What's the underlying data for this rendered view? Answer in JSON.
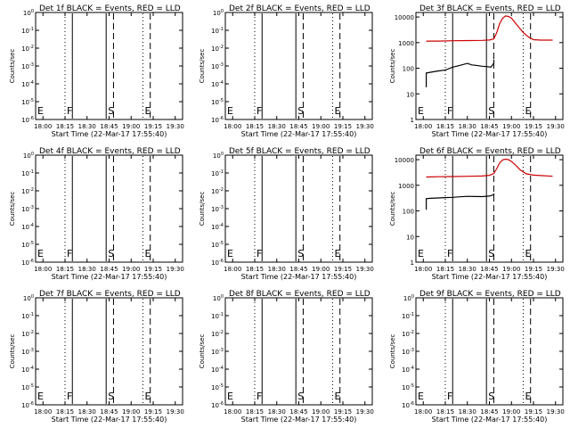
{
  "figure": {
    "title": "Det 1f BLACK = Events, RED = LLD"
  },
  "chart_data": [
    {
      "type": "line",
      "detector": "1f",
      "title": "Det 1f BLACK = Events, RED = LLD",
      "xlabel": "Start Time (22-Mar-17 17:55:40)",
      "ylabel": "Counts/sec",
      "yscale": "log",
      "xlim": [
        "17:55",
        "19:35"
      ],
      "xticks": [
        "18:00",
        "18:15",
        "18:30",
        "18:45",
        "19:00",
        "19:15",
        "19:30"
      ],
      "yticks": [
        "10^0",
        "10^-1",
        "10^-2",
        "10^-3",
        "10^-4",
        "10^-5",
        "10^-6"
      ],
      "ylim": [
        -6,
        0
      ],
      "markers": [
        {
          "label": "E",
          "time": "17:55",
          "style": "dotted"
        },
        {
          "label": "F",
          "time": "18:15",
          "style": "dotted"
        },
        {
          "label": "",
          "time": "18:20",
          "style": "solid"
        },
        {
          "label": "S",
          "time": "18:43",
          "style": "solid"
        },
        {
          "label": "",
          "time": "18:48",
          "style": "dashed"
        },
        {
          "label": "E",
          "time": "19:08",
          "style": "dotted"
        },
        {
          "label": "",
          "time": "19:13",
          "style": "dashed"
        }
      ],
      "series": []
    },
    {
      "type": "line",
      "detector": "2f",
      "title": "Det 2f BLACK = Events, RED = LLD",
      "xlabel": "Start Time (22-Mar-17 17:55:40)",
      "ylabel": "Counts/sec",
      "yscale": "log",
      "xlim": [
        "17:55",
        "19:35"
      ],
      "xticks": [
        "18:00",
        "18:15",
        "18:30",
        "18:45",
        "19:00",
        "19:15",
        "19:30"
      ],
      "yticks": [
        "10^0",
        "10^-1",
        "10^-2",
        "10^-3",
        "10^-4",
        "10^-5",
        "10^-6"
      ],
      "ylim": [
        -6,
        0
      ],
      "markers": [
        {
          "label": "E",
          "time": "17:55",
          "style": "dotted"
        },
        {
          "label": "F",
          "time": "18:15",
          "style": "dotted"
        },
        {
          "label": "",
          "time": "18:20",
          "style": "solid"
        },
        {
          "label": "S",
          "time": "18:43",
          "style": "solid"
        },
        {
          "label": "",
          "time": "18:48",
          "style": "dashed"
        },
        {
          "label": "E",
          "time": "19:08",
          "style": "dotted"
        },
        {
          "label": "",
          "time": "19:13",
          "style": "dashed"
        }
      ],
      "series": []
    },
    {
      "type": "line",
      "detector": "3f",
      "title": "Det 3f BLACK = Events, RED = LLD",
      "xlabel": "Start Time (22-Mar-17 17:55:40)",
      "ylabel": "Counts/sec",
      "yscale": "log",
      "xlim": [
        "17:55",
        "19:35"
      ],
      "xticks": [
        "18:00",
        "18:15",
        "18:30",
        "18:45",
        "19:00",
        "19:15",
        "19:30"
      ],
      "yticks": [
        "1",
        "10",
        "100",
        "1000",
        "10000"
      ],
      "ylim": [
        1,
        15000
      ],
      "markers": [
        {
          "label": "E",
          "time": "17:55",
          "style": "dotted"
        },
        {
          "label": "F",
          "time": "18:15",
          "style": "dotted"
        },
        {
          "label": "",
          "time": "18:20",
          "style": "solid"
        },
        {
          "label": "S",
          "time": "18:43",
          "style": "solid"
        },
        {
          "label": "",
          "time": "18:48",
          "style": "dashed"
        },
        {
          "label": "E",
          "time": "19:08",
          "style": "dotted"
        },
        {
          "label": "",
          "time": "19:13",
          "style": "dashed"
        }
      ],
      "series": [
        {
          "color": "#000000",
          "x": [
            "18:02",
            "18:02",
            "18:05",
            "18:10",
            "18:15",
            "18:20",
            "18:25",
            "18:30",
            "18:33",
            "18:36",
            "18:40",
            "18:44",
            "18:46",
            "18:47",
            "18:48",
            "18:48"
          ],
          "y": [
            18,
            65,
            70,
            78,
            85,
            110,
            130,
            155,
            135,
            130,
            120,
            115,
            110,
            130,
            160,
            220
          ]
        },
        {
          "color": "#cc0000",
          "x": [
            "18:02",
            "18:10",
            "18:20",
            "18:30",
            "18:40",
            "18:45",
            "18:48",
            "18:50",
            "18:52",
            "18:54",
            "18:56",
            "18:58",
            "19:00",
            "19:02",
            "19:05",
            "19:08",
            "19:12",
            "19:15",
            "19:20",
            "19:28"
          ],
          "y": [
            1150,
            1150,
            1180,
            1200,
            1220,
            1260,
            1400,
            2500,
            5500,
            9000,
            11000,
            10500,
            9000,
            6500,
            4000,
            2500,
            1600,
            1300,
            1250,
            1250
          ]
        }
      ]
    },
    {
      "type": "line",
      "detector": "4f",
      "title": "Det 4f BLACK = Events, RED = LLD",
      "xlabel": "Start Time (22-Mar-17 17:55:40)",
      "ylabel": "Counts/sec",
      "yscale": "log",
      "xlim": [
        "17:55",
        "19:35"
      ],
      "xticks": [
        "18:00",
        "18:15",
        "18:30",
        "18:45",
        "19:00",
        "19:15",
        "19:30"
      ],
      "yticks": [
        "10^0",
        "10^-1",
        "10^-2",
        "10^-3",
        "10^-4",
        "10^-5",
        "10^-6"
      ],
      "ylim": [
        -6,
        0
      ],
      "markers": [
        {
          "label": "E",
          "time": "17:55",
          "style": "dotted"
        },
        {
          "label": "F",
          "time": "18:15",
          "style": "dotted"
        },
        {
          "label": "",
          "time": "18:20",
          "style": "solid"
        },
        {
          "label": "S",
          "time": "18:43",
          "style": "solid"
        },
        {
          "label": "",
          "time": "18:48",
          "style": "dashed"
        },
        {
          "label": "E",
          "time": "19:08",
          "style": "dotted"
        },
        {
          "label": "",
          "time": "19:13",
          "style": "dashed"
        }
      ],
      "series": []
    },
    {
      "type": "line",
      "detector": "5f",
      "title": "Det 5f BLACK = Events, RED = LLD",
      "xlabel": "Start Time (22-Mar-17 17:55:40)",
      "ylabel": "Counts/sec",
      "yscale": "log",
      "xlim": [
        "17:55",
        "19:35"
      ],
      "xticks": [
        "18:00",
        "18:15",
        "18:30",
        "18:45",
        "19:00",
        "19:15",
        "19:30"
      ],
      "yticks": [
        "10^0",
        "10^-1",
        "10^-2",
        "10^-3",
        "10^-4",
        "10^-5",
        "10^-6"
      ],
      "ylim": [
        -6,
        0
      ],
      "markers": [
        {
          "label": "E",
          "time": "17:55",
          "style": "dotted"
        },
        {
          "label": "F",
          "time": "18:15",
          "style": "dotted"
        },
        {
          "label": "",
          "time": "18:20",
          "style": "solid"
        },
        {
          "label": "S",
          "time": "18:43",
          "style": "solid"
        },
        {
          "label": "",
          "time": "18:48",
          "style": "dashed"
        },
        {
          "label": "E",
          "time": "19:08",
          "style": "dotted"
        },
        {
          "label": "",
          "time": "19:13",
          "style": "dashed"
        }
      ],
      "series": []
    },
    {
      "type": "line",
      "detector": "6f",
      "title": "Det 6f BLACK = Events, RED = LLD",
      "xlabel": "Start Time (22-Mar-17 17:55:40)",
      "ylabel": "Counts/sec",
      "yscale": "log",
      "xlim": [
        "17:55",
        "19:35"
      ],
      "xticks": [
        "18:00",
        "18:15",
        "18:30",
        "18:45",
        "19:00",
        "19:15",
        "19:30"
      ],
      "yticks": [
        "1",
        "10",
        "100",
        "1000",
        "10000"
      ],
      "ylim": [
        1,
        15000
      ],
      "markers": [
        {
          "label": "E",
          "time": "17:55",
          "style": "dotted"
        },
        {
          "label": "F",
          "time": "18:15",
          "style": "dotted"
        },
        {
          "label": "",
          "time": "18:20",
          "style": "solid"
        },
        {
          "label": "S",
          "time": "18:43",
          "style": "solid"
        },
        {
          "label": "",
          "time": "18:48",
          "style": "dashed"
        },
        {
          "label": "E",
          "time": "19:08",
          "style": "dotted"
        },
        {
          "label": "",
          "time": "19:13",
          "style": "dashed"
        }
      ],
      "series": [
        {
          "color": "#000000",
          "x": [
            "18:02",
            "18:02",
            "18:05",
            "18:10",
            "18:15",
            "18:20",
            "18:25",
            "18:30",
            "18:35",
            "18:40",
            "18:45",
            "18:48",
            "18:48"
          ],
          "y": [
            110,
            300,
            310,
            320,
            330,
            340,
            355,
            370,
            365,
            360,
            380,
            430,
            480
          ]
        },
        {
          "color": "#cc0000",
          "x": [
            "18:02",
            "18:10",
            "18:20",
            "18:30",
            "18:40",
            "18:45",
            "18:48",
            "18:50",
            "18:52",
            "18:54",
            "18:56",
            "18:58",
            "19:00",
            "19:03",
            "19:06",
            "19:10",
            "19:15",
            "19:20",
            "19:28"
          ],
          "y": [
            2100,
            2150,
            2200,
            2250,
            2300,
            2450,
            2900,
            4500,
            7500,
            9800,
            10500,
            10000,
            8500,
            6000,
            4000,
            2800,
            2500,
            2400,
            2250
          ]
        }
      ]
    },
    {
      "type": "line",
      "detector": "7f",
      "title": "Det 7f BLACK = Events, RED = LLD",
      "xlabel": "Start Time (22-Mar-17 17:55:40)",
      "ylabel": "Counts/sec",
      "yscale": "log",
      "xlim": [
        "17:55",
        "19:35"
      ],
      "xticks": [
        "18:00",
        "18:15",
        "18:30",
        "18:45",
        "19:00",
        "19:15",
        "19:30"
      ],
      "yticks": [
        "10^0",
        "10^-1",
        "10^-2",
        "10^-3",
        "10^-4",
        "10^-5",
        "10^-6"
      ],
      "ylim": [
        -6,
        0
      ],
      "markers": [
        {
          "label": "E",
          "time": "17:55",
          "style": "dotted"
        },
        {
          "label": "F",
          "time": "18:15",
          "style": "dotted"
        },
        {
          "label": "",
          "time": "18:20",
          "style": "solid"
        },
        {
          "label": "S",
          "time": "18:43",
          "style": "solid"
        },
        {
          "label": "",
          "time": "18:48",
          "style": "dashed"
        },
        {
          "label": "E",
          "time": "19:08",
          "style": "dotted"
        },
        {
          "label": "",
          "time": "19:13",
          "style": "dashed"
        }
      ],
      "series": []
    },
    {
      "type": "line",
      "detector": "8f",
      "title": "Det 8f BLACK = Events, RED = LLD",
      "xlabel": "Start Time (22-Mar-17 17:55:40)",
      "ylabel": "Counts/sec",
      "yscale": "log",
      "xlim": [
        "17:55",
        "19:35"
      ],
      "xticks": [
        "18:00",
        "18:15",
        "18:30",
        "18:45",
        "19:00",
        "19:15",
        "19:30"
      ],
      "yticks": [
        "10^0",
        "10^-1",
        "10^-2",
        "10^-3",
        "10^-4",
        "10^-5",
        "10^-6"
      ],
      "ylim": [
        -6,
        0
      ],
      "markers": [
        {
          "label": "E",
          "time": "17:55",
          "style": "dotted"
        },
        {
          "label": "F",
          "time": "18:15",
          "style": "dotted"
        },
        {
          "label": "",
          "time": "18:20",
          "style": "solid"
        },
        {
          "label": "S",
          "time": "18:43",
          "style": "solid"
        },
        {
          "label": "",
          "time": "18:48",
          "style": "dashed"
        },
        {
          "label": "E",
          "time": "19:08",
          "style": "dotted"
        },
        {
          "label": "",
          "time": "19:13",
          "style": "dashed"
        }
      ],
      "series": []
    },
    {
      "type": "line",
      "detector": "9f",
      "title": "Det 9f BLACK = Events, RED = LLD",
      "xlabel": "Start Time (22-Mar-17 17:55:40)",
      "ylabel": "Counts/sec",
      "yscale": "log",
      "xlim": [
        "17:55",
        "19:35"
      ],
      "xticks": [
        "18:00",
        "18:15",
        "18:30",
        "18:45",
        "19:00",
        "19:15",
        "19:30"
      ],
      "yticks": [
        "10^0",
        "10^-1",
        "10^-2",
        "10^-3",
        "10^-4",
        "10^-5",
        "10^-6"
      ],
      "ylim": [
        -6,
        0
      ],
      "markers": [
        {
          "label": "E",
          "time": "17:55",
          "style": "dotted"
        },
        {
          "label": "F",
          "time": "18:15",
          "style": "dotted"
        },
        {
          "label": "",
          "time": "18:20",
          "style": "solid"
        },
        {
          "label": "S",
          "time": "18:43",
          "style": "solid"
        },
        {
          "label": "",
          "time": "18:48",
          "style": "dashed"
        },
        {
          "label": "E",
          "time": "19:08",
          "style": "dotted"
        },
        {
          "label": "",
          "time": "19:13",
          "style": "dashed"
        }
      ],
      "series": []
    }
  ]
}
